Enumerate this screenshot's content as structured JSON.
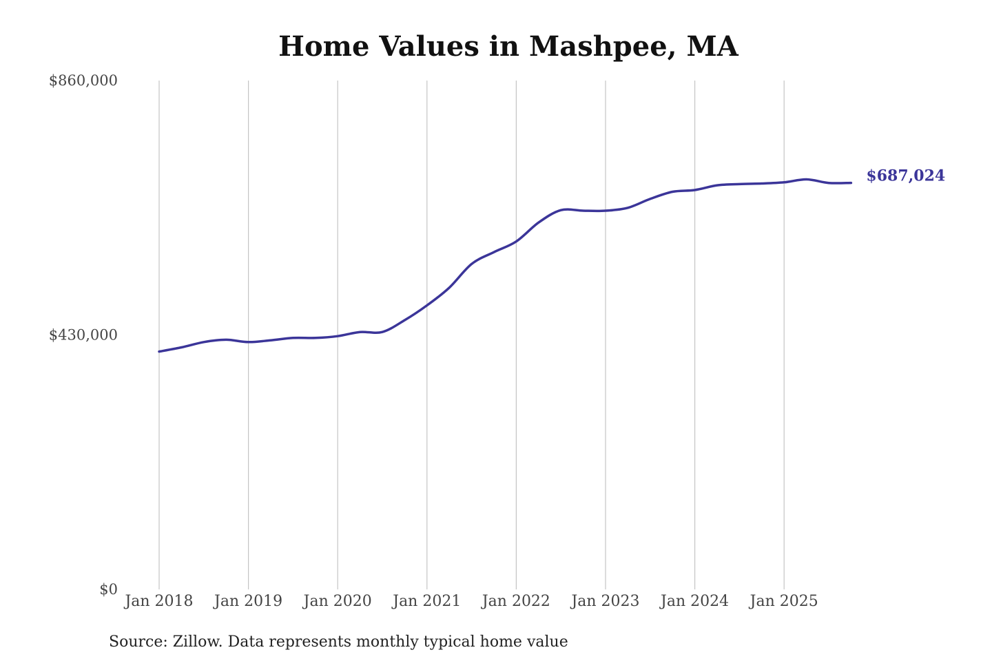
{
  "chart_data": {
    "type": "line",
    "title": "Home Values in Mashpee, MA",
    "source": "Source: Zillow. Data represents monthly typical home value",
    "ylim": [
      0,
      860000
    ],
    "ytick_values": [
      0,
      430000,
      860000
    ],
    "ytick_labels": [
      "$0",
      "$430,000",
      "$860,000"
    ],
    "xlim": [
      "2018-01",
      "2025-12"
    ],
    "xtick_values": [
      "2018-01",
      "2019-01",
      "2020-01",
      "2021-01",
      "2022-01",
      "2023-01",
      "2024-01",
      "2025-01"
    ],
    "xtick_labels": [
      "Jan 2018",
      "Jan 2019",
      "Jan 2020",
      "Jan 2021",
      "Jan 2022",
      "Jan 2023",
      "Jan 2024",
      "Jan 2025"
    ],
    "grid": "vertical",
    "line_color": "#3b3599",
    "end_label": "$687,024",
    "series": [
      {
        "x": [
          "2018-01",
          "2018-04",
          "2018-07",
          "2018-10",
          "2019-01",
          "2019-04",
          "2019-07",
          "2019-10",
          "2020-01",
          "2020-04",
          "2020-07",
          "2020-10",
          "2021-01",
          "2021-04",
          "2021-07",
          "2021-10",
          "2022-01",
          "2022-04",
          "2022-07",
          "2022-10",
          "2023-01",
          "2023-04",
          "2023-07",
          "2023-10",
          "2024-01",
          "2024-04",
          "2024-07",
          "2024-10",
          "2025-01",
          "2025-04",
          "2025-07",
          "2025-10"
        ],
        "values": [
          402000,
          409000,
          418000,
          422000,
          418000,
          421000,
          425000,
          425000,
          428000,
          435000,
          435000,
          455000,
          480000,
          510000,
          550000,
          570000,
          588000,
          620000,
          641000,
          640000,
          640000,
          645000,
          660000,
          672000,
          675000,
          683000,
          685000,
          686000,
          688000,
          693000,
          687000,
          687024
        ]
      }
    ]
  }
}
